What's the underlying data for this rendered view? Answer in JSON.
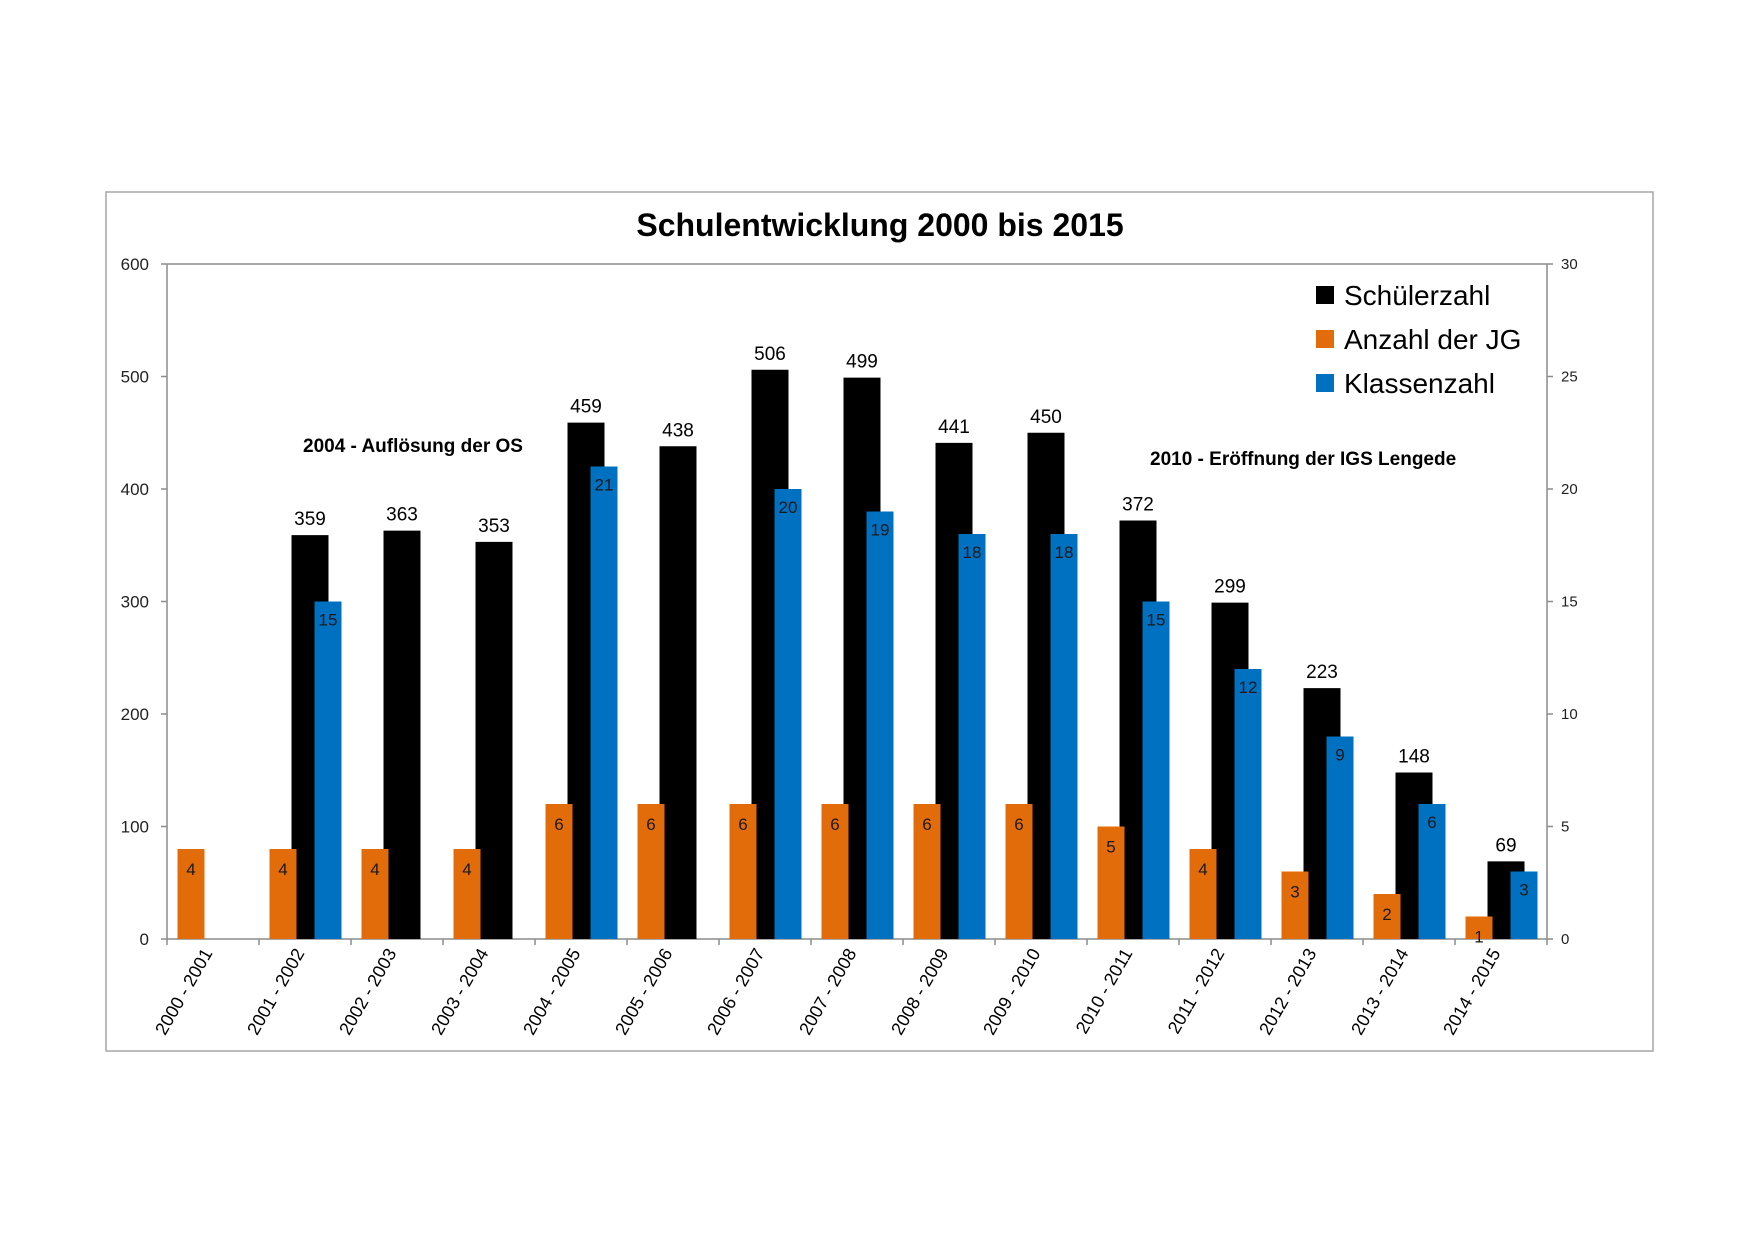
{
  "chart_data": {
    "type": "bar",
    "title": "Schulentwicklung 2000 bis 2015",
    "categories": [
      "2000 - 2001",
      "2001 - 2002",
      "2002 - 2003",
      "2003 - 2004",
      "2004 - 2005",
      "2005 - 2006",
      "2006 - 2007",
      "2007 - 2008",
      "2008 - 2009",
      "2009 - 2010",
      "2010 - 2011",
      "2011 - 2012",
      "2012 - 2013",
      "2013 - 2014",
      "2014 - 2015"
    ],
    "series": [
      {
        "name": "Schülerzahl",
        "axis": "left",
        "color": "#000000",
        "values": [
          null,
          359,
          363,
          353,
          459,
          438,
          506,
          499,
          441,
          450,
          372,
          299,
          223,
          148,
          69
        ]
      },
      {
        "name": "Anzahl der JG",
        "axis": "right",
        "color": "#e36c0a",
        "values": [
          4,
          4,
          4,
          4,
          6,
          6,
          6,
          6,
          6,
          6,
          5,
          4,
          3,
          2,
          1
        ]
      },
      {
        "name": "Klassenzahl",
        "axis": "right",
        "color": "#0070c0",
        "values": [
          null,
          15,
          null,
          null,
          21,
          null,
          20,
          19,
          18,
          18,
          15,
          12,
          9,
          6,
          3
        ]
      }
    ],
    "ylim": [
      0,
      600
    ],
    "y_ticks": [
      "0",
      "100",
      "200",
      "300",
      "400",
      "500",
      "600"
    ],
    "y2lim": [
      0,
      30
    ],
    "y2_ticks": [
      "0",
      "5",
      "10",
      "15",
      "20",
      "25",
      "30"
    ],
    "legend": {
      "position": "top-right",
      "items": [
        "Schülerzahl",
        "Anzahl der JG",
        "Klassenzahl"
      ]
    },
    "annotations": [
      "2004 - Auflösung der OS",
      "2010 - Eröffnung der IGS Lengede"
    ],
    "grid": false
  }
}
